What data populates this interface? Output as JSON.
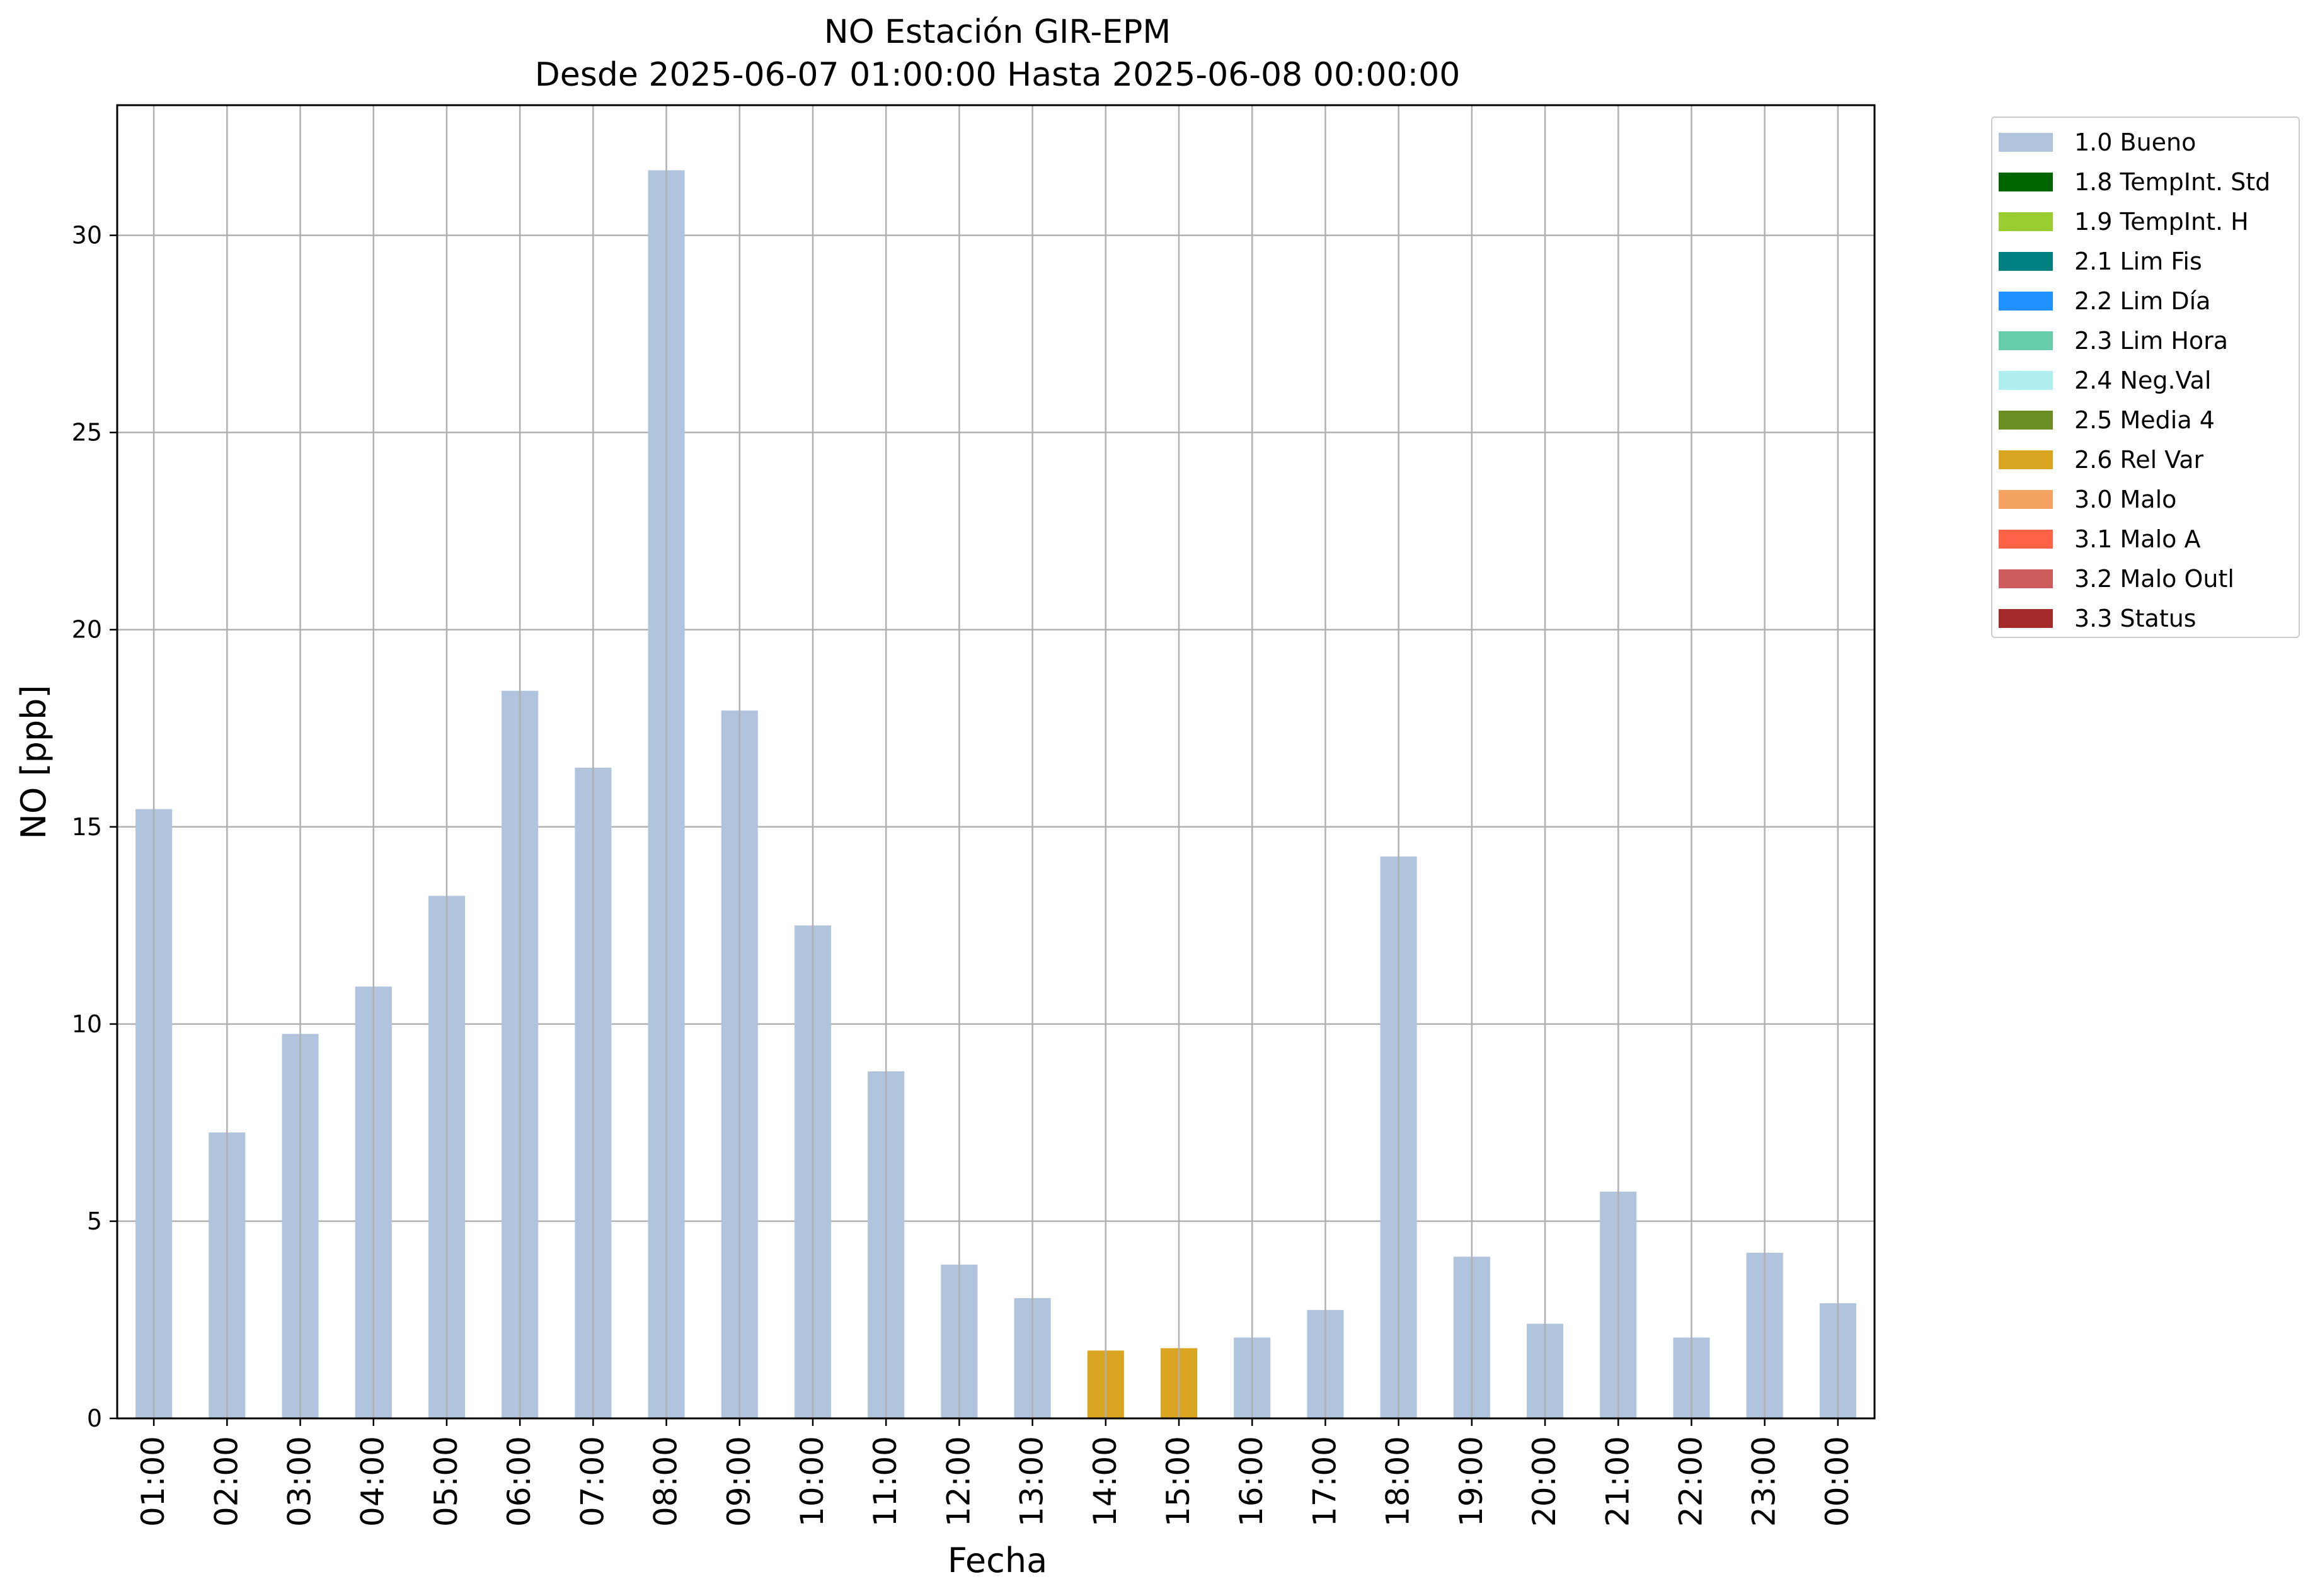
{
  "chart_data": {
    "type": "bar",
    "title": "NO Estación GIR-EPM",
    "subtitle": "Desde 2025-06-07 01:00:00 Hasta 2025-06-08 00:00:00",
    "xlabel": "Fecha",
    "ylabel": "NO [ppb]",
    "ylim": [
      0,
      33.3
    ],
    "yticks": [
      0,
      5,
      10,
      15,
      20,
      25,
      30
    ],
    "grid": true,
    "legend_position": "outside top-right",
    "categories": [
      "01:00",
      "02:00",
      "03:00",
      "04:00",
      "05:00",
      "06:00",
      "07:00",
      "08:00",
      "09:00",
      "10:00",
      "11:00",
      "12:00",
      "13:00",
      "14:00",
      "15:00",
      "16:00",
      "17:00",
      "18:00",
      "19:00",
      "20:00",
      "21:00",
      "22:00",
      "23:00",
      "00:00"
    ],
    "values": [
      15.45,
      7.25,
      9.75,
      10.95,
      13.25,
      18.45,
      16.5,
      31.65,
      17.95,
      12.5,
      8.8,
      3.9,
      3.05,
      1.72,
      1.78,
      2.05,
      2.75,
      14.25,
      4.1,
      2.4,
      5.75,
      2.05,
      4.2,
      2.92
    ],
    "flags": [
      "1.0 Bueno",
      "1.0 Bueno",
      "1.0 Bueno",
      "1.0 Bueno",
      "1.0 Bueno",
      "1.0 Bueno",
      "1.0 Bueno",
      "1.0 Bueno",
      "1.0 Bueno",
      "1.0 Bueno",
      "1.0 Bueno",
      "1.0 Bueno",
      "1.0 Bueno",
      "2.6 Rel Var",
      "2.6 Rel Var",
      "1.0 Bueno",
      "1.0 Bueno",
      "1.0 Bueno",
      "1.0 Bueno",
      "1.0 Bueno",
      "1.0 Bueno",
      "1.0 Bueno",
      "1.0 Bueno",
      "1.0 Bueno"
    ],
    "legend": [
      {
        "label": "1.0 Bueno",
        "color": "#b0c4de"
      },
      {
        "label": "1.8 TempInt. Std",
        "color": "#006400"
      },
      {
        "label": "1.9 TempInt. H",
        "color": "#9acd32"
      },
      {
        "label": "2.1 Lim Fis",
        "color": "#008080"
      },
      {
        "label": "2.2 Lim Día",
        "color": "#1e90ff"
      },
      {
        "label": "2.3 Lim Hora",
        "color": "#66cdaa"
      },
      {
        "label": "2.4 Neg.Val",
        "color": "#afeeee"
      },
      {
        "label": "2.5 Media 4",
        "color": "#6b8e23"
      },
      {
        "label": "2.6 Rel Var",
        "color": "#daa520"
      },
      {
        "label": "3.0 Malo",
        "color": "#f4a460"
      },
      {
        "label": "3.1 Malo A",
        "color": "#ff6347"
      },
      {
        "label": "3.2 Malo Outl",
        "color": "#cd5c5c"
      },
      {
        "label": "3.3 Status",
        "color": "#a52a2a"
      }
    ]
  }
}
